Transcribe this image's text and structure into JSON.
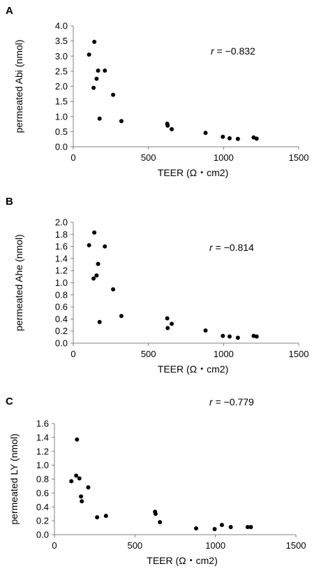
{
  "chart_data": [
    {
      "panel": "A",
      "type": "scatter",
      "xlabel": "TEER (Ω・cm2)",
      "ylabel": "permeated Abi (nmol)",
      "annotation": {
        "r_symbol": "r",
        "value_text": " = −0.832"
      },
      "xlim": [
        0,
        1500
      ],
      "ylim": [
        0,
        4.0
      ],
      "x_ticks": [
        "0",
        "500",
        "1000",
        "1500"
      ],
      "x_tick_values": [
        0,
        500,
        1000,
        1500
      ],
      "y_ticks": [
        "0.0",
        "0.5",
        "1.0",
        "1.5",
        "2.0",
        "2.5",
        "3.0",
        "3.5",
        "4.0"
      ],
      "y_tick_values": [
        0,
        0.5,
        1.0,
        1.5,
        2.0,
        2.5,
        3.0,
        3.5,
        4.0
      ],
      "points": [
        {
          "x": 105,
          "y": 3.05
        },
        {
          "x": 140,
          "y": 3.47
        },
        {
          "x": 135,
          "y": 1.95
        },
        {
          "x": 155,
          "y": 2.25
        },
        {
          "x": 165,
          "y": 2.52
        },
        {
          "x": 210,
          "y": 2.52
        },
        {
          "x": 175,
          "y": 0.93
        },
        {
          "x": 265,
          "y": 1.72
        },
        {
          "x": 320,
          "y": 0.85
        },
        {
          "x": 625,
          "y": 0.76
        },
        {
          "x": 628,
          "y": 0.7
        },
        {
          "x": 655,
          "y": 0.58
        },
        {
          "x": 880,
          "y": 0.46
        },
        {
          "x": 995,
          "y": 0.33
        },
        {
          "x": 1040,
          "y": 0.28
        },
        {
          "x": 1095,
          "y": 0.26
        },
        {
          "x": 1200,
          "y": 0.31
        },
        {
          "x": 1220,
          "y": 0.27
        }
      ]
    },
    {
      "panel": "B",
      "type": "scatter",
      "xlabel": "TEER (Ω・cm2)",
      "ylabel": "permeated Ahe (nmol)",
      "annotation": {
        "r_symbol": "r",
        "value_text": " = −0.814"
      },
      "xlim": [
        0,
        1500
      ],
      "ylim": [
        0,
        2.0
      ],
      "x_ticks": [
        "0",
        "500",
        "1000",
        "1500"
      ],
      "x_tick_values": [
        0,
        500,
        1000,
        1500
      ],
      "y_ticks": [
        "0.0",
        "0.2",
        "0.4",
        "0.6",
        "0.8",
        "1.0",
        "1.2",
        "1.4",
        "1.6",
        "1.8",
        "2.0"
      ],
      "y_tick_values": [
        0,
        0.2,
        0.4,
        0.6,
        0.8,
        1.0,
        1.2,
        1.4,
        1.6,
        1.8,
        2.0
      ],
      "points": [
        {
          "x": 105,
          "y": 1.62
        },
        {
          "x": 140,
          "y": 1.83
        },
        {
          "x": 135,
          "y": 1.07
        },
        {
          "x": 155,
          "y": 1.12
        },
        {
          "x": 165,
          "y": 1.31
        },
        {
          "x": 210,
          "y": 1.6
        },
        {
          "x": 175,
          "y": 0.35
        },
        {
          "x": 265,
          "y": 0.89
        },
        {
          "x": 320,
          "y": 0.45
        },
        {
          "x": 625,
          "y": 0.41
        },
        {
          "x": 628,
          "y": 0.25
        },
        {
          "x": 655,
          "y": 0.32
        },
        {
          "x": 880,
          "y": 0.21
        },
        {
          "x": 995,
          "y": 0.12
        },
        {
          "x": 1040,
          "y": 0.11
        },
        {
          "x": 1095,
          "y": 0.09
        },
        {
          "x": 1200,
          "y": 0.12
        },
        {
          "x": 1220,
          "y": 0.11
        }
      ]
    },
    {
      "panel": "C",
      "type": "scatter",
      "xlabel": "TEER (Ω・cm2)",
      "ylabel": "permeated LY (nmol)",
      "annotation": {
        "r_symbol": "r",
        "value_text": " = −0.779"
      },
      "xlim": [
        0,
        1500
      ],
      "ylim": [
        0,
        1.6
      ],
      "x_ticks": [
        "0",
        "500",
        "1000",
        "1500"
      ],
      "x_tick_values": [
        0,
        500,
        1000,
        1500
      ],
      "y_ticks": [
        "0.0",
        "0.2",
        "0.4",
        "0.6",
        "0.8",
        "1.0",
        "1.2",
        "1.4",
        "1.6"
      ],
      "y_tick_values": [
        0,
        0.2,
        0.4,
        0.6,
        0.8,
        1.0,
        1.2,
        1.4,
        1.6
      ],
      "points": [
        {
          "x": 105,
          "y": 0.77
        },
        {
          "x": 140,
          "y": 1.37
        },
        {
          "x": 135,
          "y": 0.85
        },
        {
          "x": 155,
          "y": 0.81
        },
        {
          "x": 165,
          "y": 0.55
        },
        {
          "x": 170,
          "y": 0.48
        },
        {
          "x": 210,
          "y": 0.68
        },
        {
          "x": 265,
          "y": 0.25
        },
        {
          "x": 320,
          "y": 0.27
        },
        {
          "x": 625,
          "y": 0.33
        },
        {
          "x": 628,
          "y": 0.3
        },
        {
          "x": 655,
          "y": 0.18
        },
        {
          "x": 880,
          "y": 0.09
        },
        {
          "x": 995,
          "y": 0.08
        },
        {
          "x": 1040,
          "y": 0.14
        },
        {
          "x": 1095,
          "y": 0.11
        },
        {
          "x": 1200,
          "y": 0.11
        },
        {
          "x": 1220,
          "y": 0.11
        }
      ]
    }
  ]
}
